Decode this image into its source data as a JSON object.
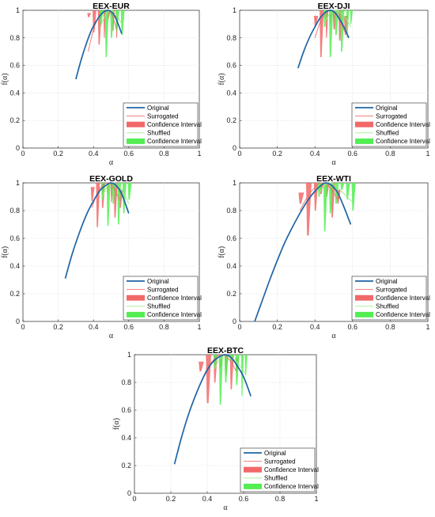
{
  "colors": {
    "original": "#1f64a6",
    "surrogated_line": "#f07070",
    "surrogated_band": "#f26868",
    "shuffled_line": "#9ef08a",
    "shuffled_band": "#54ee54"
  },
  "legend_labels": [
    "Original",
    "Surrogated",
    "Confidence Interval",
    "Shuffled",
    "Confidence Interval"
  ],
  "chart_data": [
    {
      "type": "line",
      "title": "EEX-EUR",
      "xlabel": "α",
      "ylabel": "f(α)",
      "xlim": [
        0,
        1
      ],
      "ylim": [
        0,
        1
      ],
      "xticks": [
        "0",
        "0.2",
        "0.4",
        "0.6",
        "0.8",
        "1"
      ],
      "yticks": [
        "0",
        "0.2",
        "0.4",
        "0.6",
        "0.8",
        "1"
      ],
      "grid": true,
      "legend_position": "bottom-right",
      "original": {
        "x": [
          0.3,
          0.33,
          0.36,
          0.39,
          0.42,
          0.45,
          0.48,
          0.5,
          0.52,
          0.54,
          0.56
        ],
        "y": [
          0.5,
          0.64,
          0.76,
          0.86,
          0.93,
          0.98,
          1.0,
          0.99,
          0.96,
          0.9,
          0.83
        ]
      },
      "surrogated": {
        "x": [
          0.37,
          0.4,
          0.43,
          0.46,
          0.48,
          0.51,
          0.53
        ],
        "y": [
          0.7,
          0.86,
          0.95,
          0.99,
          1.0,
          0.95,
          0.86
        ],
        "lower": [
          0.95,
          0.84,
          0.75,
          0.8,
          0.93,
          0.85,
          0.8
        ],
        "upper": [
          0.98,
          1.0,
          1.0,
          1.0,
          1.0,
          1.0,
          0.98
        ]
      },
      "shuffled": {
        "x": [
          0.44,
          0.47,
          0.5,
          0.53,
          0.56
        ],
        "y": [
          0.88,
          0.97,
          1.0,
          0.97,
          0.9
        ],
        "lower": [
          0.9,
          0.66,
          0.8,
          0.85,
          0.82
        ],
        "upper": [
          1.0,
          1.0,
          1.0,
          1.0,
          1.0
        ]
      }
    },
    {
      "type": "line",
      "title": "EEX-DJI",
      "xlabel": "α",
      "ylabel": "f(α)",
      "xlim": [
        0,
        1
      ],
      "ylim": [
        0,
        1
      ],
      "xticks": [
        "0",
        "0.2",
        "0.4",
        "0.6",
        "0.8",
        "1"
      ],
      "yticks": [
        "0",
        "0.2",
        "0.4",
        "0.6",
        "0.8",
        "1"
      ],
      "grid": true,
      "legend_position": "bottom-right",
      "original": {
        "x": [
          0.31,
          0.34,
          0.37,
          0.4,
          0.43,
          0.46,
          0.48,
          0.5,
          0.52,
          0.55,
          0.58
        ],
        "y": [
          0.58,
          0.7,
          0.8,
          0.88,
          0.95,
          0.99,
          1.0,
          0.99,
          0.96,
          0.89,
          0.8
        ]
      },
      "surrogated": {
        "x": [
          0.4,
          0.43,
          0.46,
          0.48,
          0.5,
          0.53,
          0.56
        ],
        "y": [
          0.8,
          0.92,
          0.98,
          1.0,
          0.99,
          0.93,
          0.84
        ],
        "lower": [
          0.88,
          0.66,
          0.8,
          0.9,
          0.86,
          0.78,
          0.82
        ],
        "upper": [
          0.96,
          1.0,
          1.0,
          1.0,
          1.0,
          1.0,
          0.96
        ]
      },
      "shuffled": {
        "x": [
          0.45,
          0.48,
          0.51,
          0.54,
          0.57,
          0.59
        ],
        "y": [
          0.9,
          0.98,
          1.0,
          0.98,
          0.93,
          0.88
        ],
        "lower": [
          0.88,
          0.66,
          0.82,
          0.7,
          0.8,
          0.9
        ],
        "upper": [
          1.0,
          1.0,
          1.0,
          1.0,
          1.0,
          1.0
        ]
      }
    },
    {
      "type": "line",
      "title": "EEX-GOLD",
      "xlabel": "α",
      "ylabel": "f(α)",
      "xlim": [
        0,
        1
      ],
      "ylim": [
        0,
        1
      ],
      "xticks": [
        "0",
        "0.2",
        "0.4",
        "0.6",
        "0.8",
        "1"
      ],
      "yticks": [
        "0",
        "0.2",
        "0.4",
        "0.6",
        "0.8",
        "1"
      ],
      "grid": true,
      "legend_position": "bottom-right",
      "original": {
        "x": [
          0.24,
          0.28,
          0.32,
          0.36,
          0.4,
          0.44,
          0.48,
          0.5,
          0.53,
          0.56,
          0.6
        ],
        "y": [
          0.31,
          0.49,
          0.64,
          0.77,
          0.87,
          0.95,
          0.99,
          1.0,
          0.98,
          0.92,
          0.78
        ]
      },
      "surrogated": {
        "x": [
          0.39,
          0.42,
          0.45,
          0.48,
          0.5,
          0.52,
          0.55
        ],
        "y": [
          0.82,
          0.92,
          0.98,
          1.0,
          0.99,
          0.95,
          0.87
        ],
        "lower": [
          0.87,
          0.68,
          0.82,
          0.93,
          0.86,
          0.75,
          0.82
        ],
        "upper": [
          0.97,
          1.0,
          1.0,
          1.0,
          1.0,
          1.0,
          0.95
        ]
      },
      "shuffled": {
        "x": [
          0.45,
          0.48,
          0.51,
          0.54,
          0.57,
          0.6
        ],
        "y": [
          0.9,
          0.98,
          1.0,
          0.98,
          0.93,
          0.85
        ],
        "lower": [
          0.88,
          0.69,
          0.85,
          0.7,
          0.78,
          0.88
        ],
        "upper": [
          1.0,
          1.0,
          1.0,
          1.0,
          1.0,
          1.0
        ]
      }
    },
    {
      "type": "line",
      "title": "EEX-WTI",
      "xlabel": "α",
      "ylabel": "f(α)",
      "xlim": [
        0,
        1
      ],
      "ylim": [
        0,
        1
      ],
      "xticks": [
        "0",
        "0.2",
        "0.4",
        "0.6",
        "0.8",
        "1"
      ],
      "yticks": [
        "0",
        "0.2",
        "0.4",
        "0.6",
        "0.8",
        "1"
      ],
      "grid": true,
      "legend_position": "bottom-right",
      "original": {
        "x": [
          0.08,
          0.12,
          0.16,
          0.2,
          0.24,
          0.28,
          0.32,
          0.36,
          0.4,
          0.44,
          0.46,
          0.49,
          0.52,
          0.55,
          0.59
        ],
        "y": [
          0.0,
          0.15,
          0.3,
          0.44,
          0.57,
          0.68,
          0.78,
          0.87,
          0.94,
          0.99,
          1.0,
          0.98,
          0.93,
          0.84,
          0.7
        ]
      },
      "surrogated": {
        "x": [
          0.32,
          0.36,
          0.4,
          0.43,
          0.46,
          0.49,
          0.52
        ],
        "y": [
          0.8,
          0.9,
          0.97,
          1.0,
          0.99,
          0.95,
          0.88
        ],
        "lower": [
          0.85,
          0.62,
          0.8,
          0.92,
          0.9,
          0.75,
          0.85
        ],
        "upper": [
          0.93,
          1.0,
          1.0,
          1.0,
          1.0,
          1.0,
          0.95
        ]
      },
      "shuffled": {
        "x": [
          0.42,
          0.45,
          0.48,
          0.51,
          0.54,
          0.57,
          0.6
        ],
        "y": [
          0.92,
          0.98,
          1.0,
          0.98,
          0.94,
          0.9,
          0.86
        ],
        "lower": [
          0.9,
          0.65,
          0.78,
          0.85,
          0.95,
          0.88,
          0.8
        ],
        "upper": [
          1.0,
          1.0,
          1.0,
          1.0,
          1.0,
          1.0,
          1.0
        ]
      }
    },
    {
      "type": "line",
      "title": "EEX-BTC",
      "xlabel": "α",
      "ylabel": "f(α)",
      "xlim": [
        0,
        1
      ],
      "ylim": [
        0,
        1
      ],
      "xticks": [
        "0",
        "0.2",
        "0.4",
        "0.6",
        "0.8",
        "1"
      ],
      "yticks": [
        "0",
        "0.2",
        "0.4",
        "0.6",
        "0.8",
        "1"
      ],
      "grid": true,
      "legend_position": "bottom-right",
      "original": {
        "x": [
          0.22,
          0.26,
          0.3,
          0.34,
          0.38,
          0.42,
          0.46,
          0.5,
          0.53,
          0.56,
          0.6,
          0.64
        ],
        "y": [
          0.21,
          0.41,
          0.58,
          0.72,
          0.84,
          0.93,
          0.98,
          1.0,
          0.98,
          0.93,
          0.84,
          0.7
        ]
      },
      "surrogated": {
        "x": [
          0.36,
          0.4,
          0.44,
          0.47,
          0.5,
          0.53,
          0.56
        ],
        "y": [
          0.78,
          0.9,
          0.97,
          1.0,
          0.99,
          0.95,
          0.88
        ],
        "lower": [
          0.88,
          0.65,
          0.8,
          0.9,
          0.86,
          0.75,
          0.88
        ],
        "upper": [
          0.95,
          1.0,
          1.0,
          1.0,
          1.0,
          1.0,
          0.98
        ]
      },
      "shuffled": {
        "x": [
          0.44,
          0.47,
          0.5,
          0.53,
          0.56,
          0.59,
          0.61
        ],
        "y": [
          0.9,
          0.97,
          1.0,
          0.98,
          0.95,
          0.9,
          0.86
        ],
        "lower": [
          0.9,
          0.64,
          0.8,
          0.95,
          0.78,
          0.7,
          0.85
        ],
        "upper": [
          1.0,
          1.0,
          1.0,
          1.0,
          1.0,
          1.0,
          1.0
        ]
      }
    }
  ]
}
